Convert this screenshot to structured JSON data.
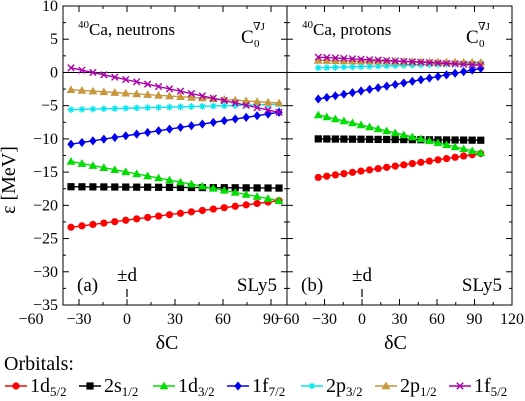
{
  "chart_data": [
    {
      "type": "line",
      "panel_label": "(a)",
      "header": {
        "sup": "40",
        "text": "Ca, neutrons"
      },
      "functional": {
        "base": "C",
        "sub": "0",
        "sup": "∇J"
      },
      "force": "SLy5",
      "marker": {
        "label": "±d",
        "x": 0
      },
      "xlim": [
        -40,
        100
      ],
      "ylim": [
        -35,
        10
      ],
      "xticks": [
        -60,
        -30,
        0,
        30,
        60,
        90
      ],
      "yticks": [
        10,
        5,
        0,
        -5,
        -10,
        -15,
        -20,
        -25,
        -30,
        -35
      ],
      "xlabel": "δC",
      "ylabel": "ε [MeV]",
      "zero_line": true,
      "series": [
        {
          "name": "1d5/2",
          "color": "#ff0000",
          "marker": "circle",
          "x": [
            -35,
            95
          ],
          "y": [
            -23.3,
            -19.3
          ]
        },
        {
          "name": "2s1/2",
          "color": "#000000",
          "marker": "square",
          "x": [
            -35,
            95
          ],
          "y": [
            -17.2,
            -17.4
          ]
        },
        {
          "name": "1d3/2",
          "color": "#00dd00",
          "marker": "triangle",
          "x": [
            -35,
            95
          ],
          "y": [
            -13.4,
            -19.3
          ]
        },
        {
          "name": "1f7/2",
          "color": "#0000ee",
          "marker": "diamond",
          "x": [
            -35,
            95
          ],
          "y": [
            -10.8,
            -6.0
          ]
        },
        {
          "name": "2p3/2",
          "color": "#00e5ee",
          "marker": "star",
          "x": [
            -35,
            95
          ],
          "y": [
            -5.6,
            -4.8
          ]
        },
        {
          "name": "2p1/2",
          "color": "#c8963c",
          "marker": "triangle",
          "x": [
            -35,
            95
          ],
          "y": [
            -2.6,
            -4.6
          ]
        },
        {
          "name": "1f5/2",
          "color": "#aa00aa",
          "marker": "cross",
          "x": [
            -35,
            95
          ],
          "y": [
            0.7,
            -6.0
          ]
        }
      ]
    },
    {
      "type": "line",
      "panel_label": "(b)",
      "header": {
        "sup": "40",
        "text": "Ca, protons"
      },
      "functional": {
        "base": "C",
        "sub": "0",
        "sup": "∇J"
      },
      "force": "SLy5",
      "marker": {
        "label": "±d",
        "x": 0
      },
      "xlim": [
        -60,
        120
      ],
      "ylim": [
        -35,
        10
      ],
      "xticks": [
        -60,
        -30,
        0,
        30,
        60,
        90,
        120
      ],
      "xlabel": "δC",
      "zero_line": true,
      "series": [
        {
          "name": "1d5/2",
          "color": "#ff0000",
          "marker": "circle",
          "x": [
            -35,
            95
          ],
          "y": [
            -15.8,
            -12.2
          ]
        },
        {
          "name": "2s1/2",
          "color": "#000000",
          "marker": "square",
          "x": [
            -35,
            95
          ],
          "y": [
            -10.0,
            -10.2
          ]
        },
        {
          "name": "1d3/2",
          "color": "#00dd00",
          "marker": "triangle",
          "x": [
            -35,
            95
          ],
          "y": [
            -6.4,
            -12.1
          ]
        },
        {
          "name": "1f7/2",
          "color": "#0000ee",
          "marker": "diamond",
          "x": [
            -35,
            95
          ],
          "y": [
            -4.0,
            0.6
          ]
        },
        {
          "name": "2p3/2",
          "color": "#00e5ee",
          "marker": "star",
          "x": [
            -35,
            95
          ],
          "y": [
            0.7,
            1.4
          ]
        },
        {
          "name": "2p1/2",
          "color": "#c8963c",
          "marker": "triangle",
          "x": [
            -35,
            95
          ],
          "y": [
            1.8,
            1.5
          ]
        },
        {
          "name": "1f5/2",
          "color": "#aa00aa",
          "marker": "cross",
          "x": [
            -35,
            95
          ],
          "y": [
            2.3,
            1.1
          ]
        }
      ]
    }
  ],
  "legend": {
    "title": "Orbitals:",
    "entries": [
      {
        "main": "1d",
        "sub": "5/2",
        "color": "#ff0000",
        "marker": "circle"
      },
      {
        "main": "2s",
        "sub": "1/2",
        "color": "#000000",
        "marker": "square"
      },
      {
        "main": "1d",
        "sub": "3/2",
        "color": "#00dd00",
        "marker": "triangle"
      },
      {
        "main": "1f",
        "sub": "7/2",
        "color": "#0000ee",
        "marker": "diamond"
      },
      {
        "main": "2p",
        "sub": "3/2",
        "color": "#00e5ee",
        "marker": "star"
      },
      {
        "main": "2p",
        "sub": "1/2",
        "color": "#c8963c",
        "marker": "triangle"
      },
      {
        "main": "1f",
        "sub": "5/2",
        "color": "#aa00aa",
        "marker": "cross"
      }
    ]
  }
}
